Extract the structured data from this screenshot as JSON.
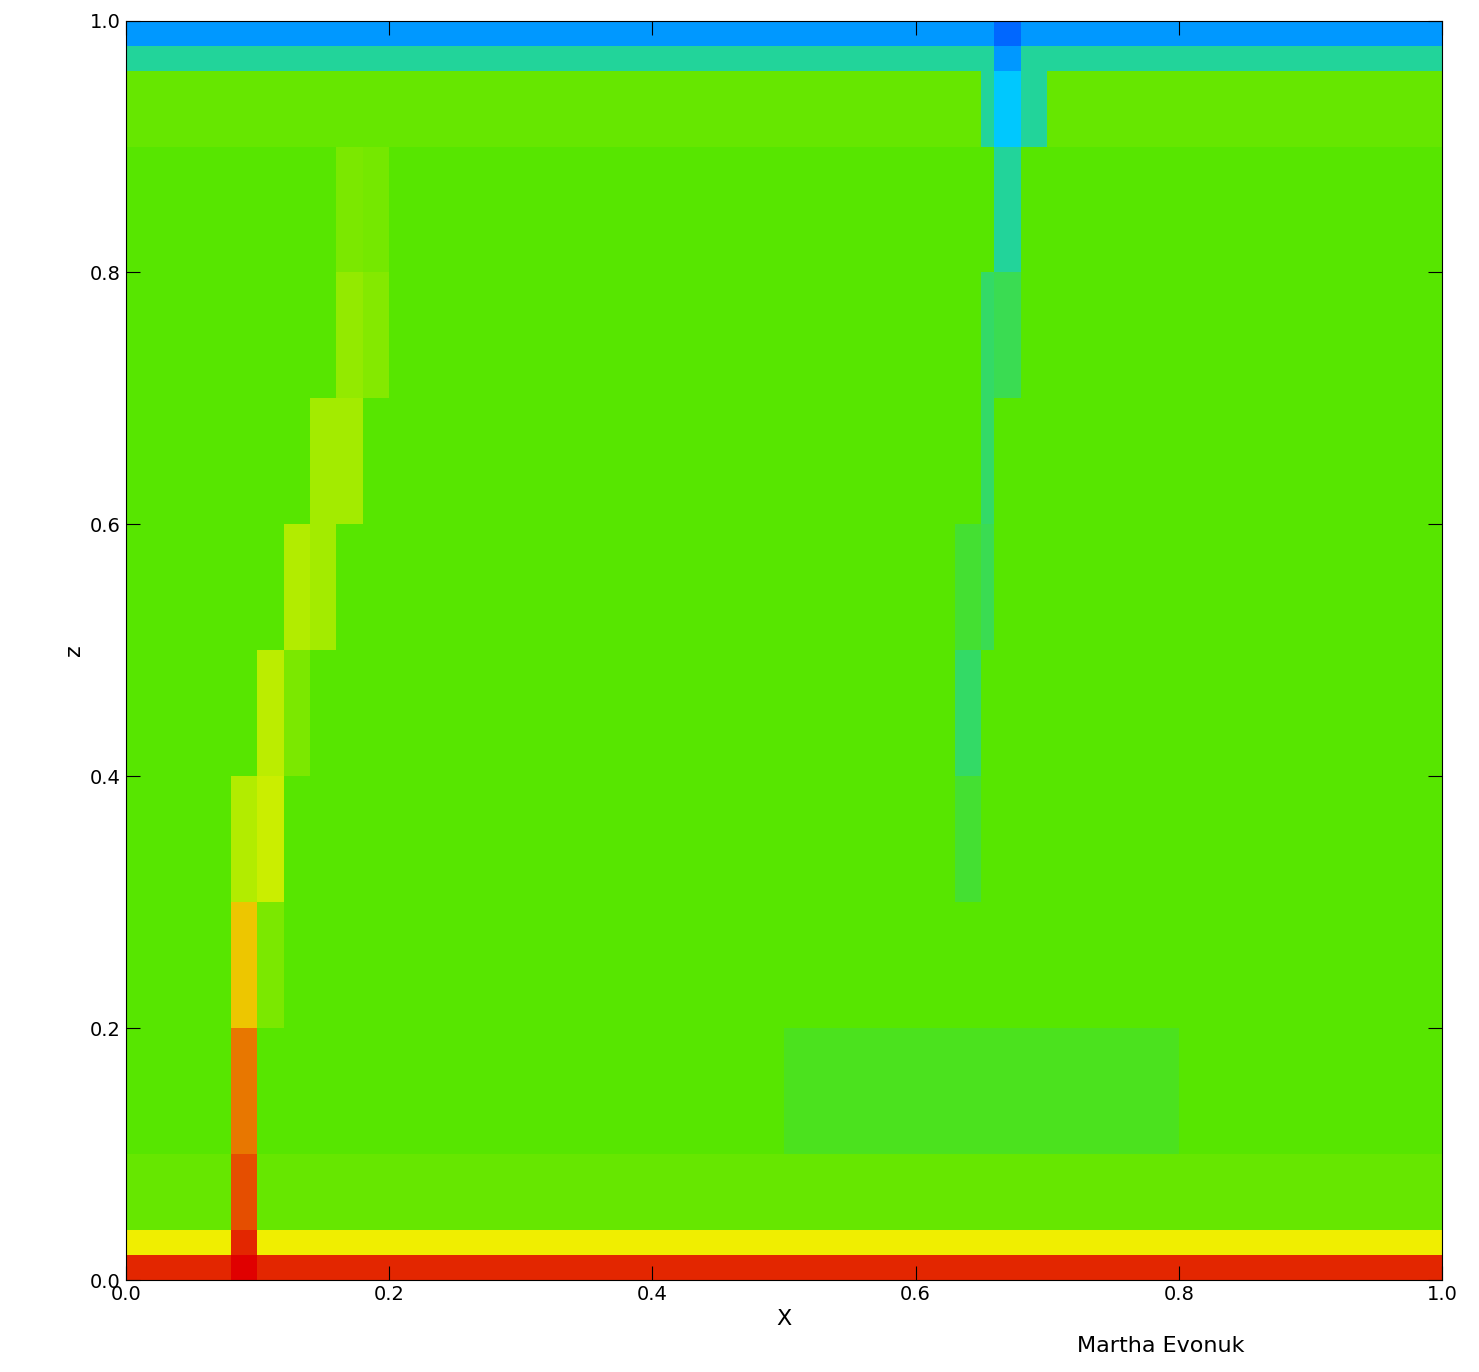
{
  "chart_data": {
    "type": "heatmap",
    "x_label": "X",
    "y_label": "z",
    "annotation": "Martha Evonuk",
    "x_edges": [
      0.0,
      0.08,
      0.1,
      0.12,
      0.14,
      0.16,
      0.18,
      0.2,
      0.3,
      0.4,
      0.5,
      0.6,
      0.63,
      0.65,
      0.66,
      0.68,
      0.7,
      0.8,
      0.9,
      1.0
    ],
    "z_edges": [
      0.0,
      0.02,
      0.04,
      0.1,
      0.2,
      0.3,
      0.4,
      0.5,
      0.6,
      0.7,
      0.8,
      0.9,
      0.96,
      0.98,
      1.0
    ],
    "cells": [
      [
        0.95,
        1.0,
        0.95,
        0.95,
        0.95,
        0.95,
        0.95,
        0.95,
        0.95,
        0.95,
        0.95,
        0.95,
        0.95,
        0.95,
        0.95,
        0.95,
        0.95,
        0.95,
        0.95
      ],
      [
        0.7,
        0.95,
        0.7,
        0.7,
        0.7,
        0.7,
        0.7,
        0.7,
        0.7,
        0.7,
        0.7,
        0.7,
        0.7,
        0.7,
        0.7,
        0.7,
        0.7,
        0.7,
        0.7
      ],
      [
        0.52,
        0.9,
        0.52,
        0.52,
        0.52,
        0.52,
        0.52,
        0.52,
        0.52,
        0.52,
        0.52,
        0.52,
        0.52,
        0.52,
        0.52,
        0.52,
        0.52,
        0.52,
        0.52
      ],
      [
        0.5,
        0.85,
        0.5,
        0.5,
        0.5,
        0.5,
        0.5,
        0.5,
        0.5,
        0.5,
        0.47,
        0.47,
        0.47,
        0.47,
        0.47,
        0.47,
        0.47,
        0.5,
        0.5
      ],
      [
        0.5,
        0.75,
        0.55,
        0.5,
        0.5,
        0.5,
        0.5,
        0.5,
        0.5,
        0.5,
        0.5,
        0.5,
        0.5,
        0.5,
        0.5,
        0.5,
        0.5,
        0.5,
        0.5
      ],
      [
        0.5,
        0.62,
        0.65,
        0.5,
        0.5,
        0.5,
        0.5,
        0.5,
        0.5,
        0.5,
        0.5,
        0.5,
        0.45,
        0.5,
        0.5,
        0.5,
        0.5,
        0.5,
        0.5
      ],
      [
        0.5,
        0.5,
        0.63,
        0.55,
        0.5,
        0.5,
        0.5,
        0.5,
        0.5,
        0.5,
        0.5,
        0.5,
        0.4,
        0.5,
        0.5,
        0.5,
        0.5,
        0.5,
        0.5
      ],
      [
        0.5,
        0.5,
        0.5,
        0.62,
        0.6,
        0.5,
        0.5,
        0.5,
        0.5,
        0.5,
        0.5,
        0.5,
        0.45,
        0.42,
        0.5,
        0.5,
        0.5,
        0.5,
        0.5
      ],
      [
        0.5,
        0.5,
        0.5,
        0.5,
        0.6,
        0.6,
        0.5,
        0.5,
        0.5,
        0.5,
        0.5,
        0.5,
        0.5,
        0.4,
        0.5,
        0.5,
        0.5,
        0.5,
        0.5
      ],
      [
        0.5,
        0.5,
        0.5,
        0.5,
        0.5,
        0.58,
        0.56,
        0.5,
        0.5,
        0.5,
        0.5,
        0.5,
        0.5,
        0.4,
        0.42,
        0.5,
        0.5,
        0.5,
        0.5
      ],
      [
        0.5,
        0.5,
        0.5,
        0.5,
        0.5,
        0.55,
        0.54,
        0.5,
        0.5,
        0.5,
        0.5,
        0.5,
        0.5,
        0.5,
        0.35,
        0.5,
        0.5,
        0.5,
        0.5
      ],
      [
        0.52,
        0.52,
        0.52,
        0.52,
        0.52,
        0.52,
        0.52,
        0.52,
        0.52,
        0.52,
        0.52,
        0.52,
        0.52,
        0.35,
        0.25,
        0.35,
        0.52,
        0.52,
        0.52
      ],
      [
        0.35,
        0.35,
        0.35,
        0.35,
        0.35,
        0.35,
        0.35,
        0.35,
        0.35,
        0.35,
        0.35,
        0.35,
        0.35,
        0.35,
        0.15,
        0.35,
        0.35,
        0.35,
        0.35
      ],
      [
        0.15,
        0.15,
        0.15,
        0.15,
        0.15,
        0.15,
        0.15,
        0.15,
        0.15,
        0.15,
        0.15,
        0.15,
        0.15,
        0.15,
        0.05,
        0.15,
        0.15,
        0.15,
        0.15
      ]
    ],
    "color_range": [
      0,
      1
    ],
    "xlim": [
      0,
      1
    ],
    "ylim": [
      0,
      1
    ],
    "xticks": [
      {
        "value": 0.0,
        "label": "0.0"
      },
      {
        "value": 0.2,
        "label": "0.2"
      },
      {
        "value": 0.4,
        "label": "0.4"
      },
      {
        "value": 0.6,
        "label": "0.6"
      },
      {
        "value": 0.8,
        "label": "0.8"
      },
      {
        "value": 1.0,
        "label": "1.0"
      }
    ],
    "yticks": [
      {
        "value": 0.0,
        "label": "0.0"
      },
      {
        "value": 0.2,
        "label": "0.2"
      },
      {
        "value": 0.4,
        "label": "0.4"
      },
      {
        "value": 0.6,
        "label": "0.6"
      },
      {
        "value": 0.8,
        "label": "0.8"
      },
      {
        "value": 1.0,
        "label": "1.0"
      }
    ]
  }
}
